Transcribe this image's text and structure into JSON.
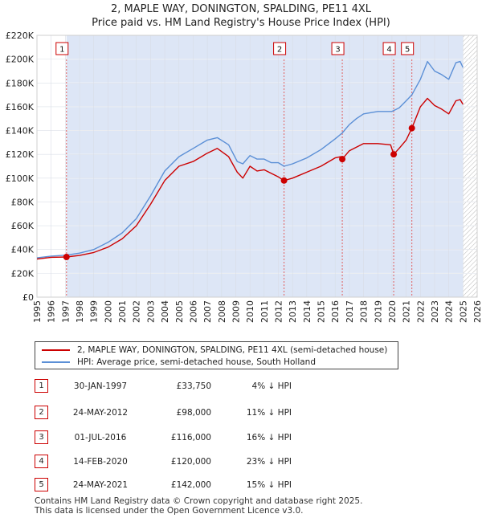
{
  "title_line1": "2, MAPLE WAY, DONINGTON, SPALDING, PE11 4XL",
  "title_line2": "Price paid vs. HM Land Registry's House Price Index (HPI)",
  "legend": {
    "price_label": "2, MAPLE WAY, DONINGTON, SPALDING, PE11 4XL (semi-detached house)",
    "hpi_label": "HPI: Average price, semi-detached house, South Holland"
  },
  "sales": [
    {
      "num": "1",
      "date": "30-JAN-1997",
      "price": "£33,750",
      "hpi": "4% ↓ HPI"
    },
    {
      "num": "2",
      "date": "24-MAY-2012",
      "price": "£98,000",
      "hpi": "11% ↓ HPI"
    },
    {
      "num": "3",
      "date": "01-JUL-2016",
      "price": "£116,000",
      "hpi": "16% ↓ HPI"
    },
    {
      "num": "4",
      "date": "14-FEB-2020",
      "price": "£120,000",
      "hpi": "23% ↓ HPI"
    },
    {
      "num": "5",
      "date": "24-MAY-2021",
      "price": "£142,000",
      "hpi": "15% ↓ HPI"
    }
  ],
  "footer": {
    "line1": "Contains HM Land Registry data © Crown copyright and database right 2025.",
    "line2": "This data is licensed under the Open Government Licence v3.0."
  },
  "colors": {
    "price_line": "#cc0000",
    "hpi_line": "#5b8fd6",
    "shade": "#dde6f6",
    "marker_box_border": "#cc0000",
    "vline": "#e06060"
  },
  "chart_data": {
    "type": "line",
    "x_range": [
      1995,
      2026
    ],
    "ylim": [
      0,
      220000
    ],
    "y_ticks": [
      0,
      20000,
      40000,
      60000,
      80000,
      100000,
      120000,
      140000,
      160000,
      180000,
      200000,
      220000
    ],
    "y_tick_labels": [
      "£0",
      "£20K",
      "£40K",
      "£60K",
      "£80K",
      "£100K",
      "£120K",
      "£140K",
      "£160K",
      "£180K",
      "£200K",
      "£220K"
    ],
    "x_ticks": [
      1995,
      1996,
      1997,
      1998,
      1999,
      2000,
      2001,
      2002,
      2003,
      2004,
      2005,
      2006,
      2007,
      2008,
      2009,
      2010,
      2011,
      2012,
      2013,
      2014,
      2015,
      2016,
      2017,
      2018,
      2019,
      2020,
      2021,
      2022,
      2023,
      2024,
      2025,
      2026
    ],
    "grid": true,
    "legend_position": "below chart",
    "hatched_region_from": 2025.0,
    "shaded_region": [
      1997.08,
      2025.0
    ],
    "series": [
      {
        "name": "2, MAPLE WAY, DONINGTON, SPALDING, PE11 4XL (semi-detached house)",
        "x": [
          1995.0,
          1996.0,
          1997.08,
          1998.0,
          1999.0,
          2000.0,
          2001.0,
          2002.0,
          2003.0,
          2004.0,
          2005.0,
          2006.0,
          2007.0,
          2007.7,
          2008.5,
          2009.1,
          2009.5,
          2010.0,
          2010.5,
          2011.0,
          2011.5,
          2012.0,
          2012.4,
          2013.0,
          2014.0,
          2015.0,
          2016.0,
          2016.4,
          2016.5,
          2017.0,
          2017.5,
          2018.0,
          2019.0,
          2019.9,
          2020.12,
          2020.5,
          2021.0,
          2021.4,
          2022.0,
          2022.5,
          2023.0,
          2023.5,
          2024.0,
          2024.5,
          2024.8,
          2025.0
        ],
        "y": [
          32000,
          33500,
          33750,
          35000,
          37500,
          42000,
          49000,
          60000,
          78000,
          98000,
          110000,
          114000,
          121000,
          125000,
          118000,
          105000,
          100000,
          110000,
          106000,
          107000,
          104000,
          101000,
          98000,
          100000,
          105000,
          110000,
          117000,
          118000,
          116000,
          123000,
          126000,
          129000,
          129000,
          128000,
          120000,
          125000,
          132000,
          142000,
          160000,
          167000,
          161000,
          158000,
          154000,
          165000,
          166000,
          162000
        ]
      },
      {
        "name": "HPI: Average price, semi-detached house, South Holland",
        "x": [
          1995.0,
          1996.0,
          1997.08,
          1998.0,
          1999.0,
          2000.0,
          2001.0,
          2002.0,
          2003.0,
          2004.0,
          2005.0,
          2006.0,
          2007.0,
          2007.7,
          2008.5,
          2009.1,
          2009.5,
          2010.0,
          2010.5,
          2011.0,
          2011.5,
          2012.0,
          2012.4,
          2013.0,
          2014.0,
          2015.0,
          2016.0,
          2016.5,
          2017.0,
          2017.5,
          2018.0,
          2019.0,
          2020.0,
          2020.5,
          2021.0,
          2021.4,
          2022.0,
          2022.5,
          2023.0,
          2023.5,
          2024.0,
          2024.5,
          2024.8,
          2025.0
        ],
        "y": [
          33000,
          34500,
          35300,
          37000,
          40000,
          46000,
          54000,
          66000,
          85000,
          106000,
          118000,
          125000,
          132000,
          134000,
          128000,
          114000,
          112000,
          119000,
          116000,
          116000,
          113000,
          113000,
          110000,
          112000,
          117000,
          124000,
          133000,
          138000,
          145000,
          150000,
          154000,
          156000,
          156000,
          159000,
          165000,
          170000,
          183000,
          198000,
          190000,
          187000,
          183000,
          197000,
          198000,
          193000
        ]
      }
    ],
    "markers": [
      {
        "label": "1",
        "x": 1997.08,
        "y": 33750
      },
      {
        "label": "2",
        "x": 2012.4,
        "y": 98000
      },
      {
        "label": "3",
        "x": 2016.5,
        "y": 116000
      },
      {
        "label": "4",
        "x": 2020.12,
        "y": 120000
      },
      {
        "label": "5",
        "x": 2021.4,
        "y": 142000
      }
    ]
  }
}
